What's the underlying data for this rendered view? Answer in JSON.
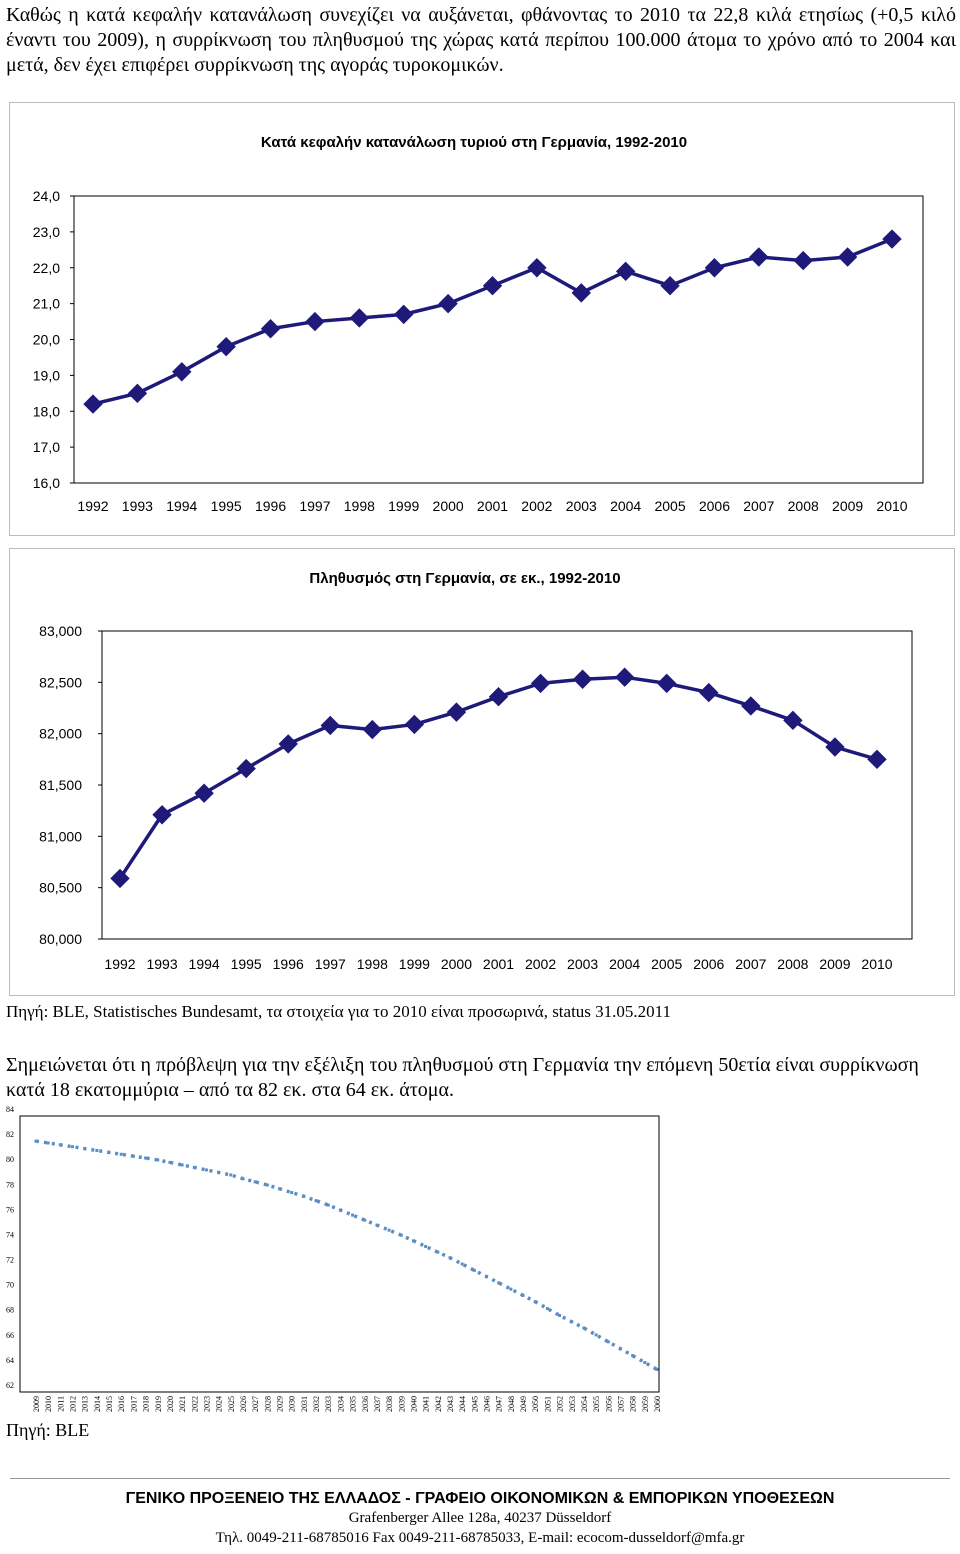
{
  "intro_text": "Καθώς η κατά κεφαλήν κατανάλωση συνεχίζει να αυξάνεται, φθάνοντας το 2010 τα 22,8 κιλά ετησίως (+0,5 κιλό έναντι του 2009), η συρρίκνωση του πληθυσμού της χώρας κατά περίπου 100.000 άτομα το χρόνο από το 2004 και μετά, δεν έχει επιφέρει συρρίκνωση της αγοράς τυροκομικών.",
  "source1": "Πηγή: BLE, Statistisches Bundesamt, τα στοιχεία για το 2010 είναι προσωρινά, status 31.05.2011",
  "intro2_text": "Σημειώνεται ότι η πρόβλεψη για την εξέλιξη του πληθυσμού στη Γερμανία την επόμενη 50ετία είναι συρρίκνωση κατά 18 εκατομμύρια – από τα 82 εκ. στα 64 εκ. άτομα.",
  "source2": "Πηγή: BLE",
  "footer": {
    "line1": "ΓΕΝΙΚΟ ΠΡΟΞΕΝΕΙΟ ΤΗΣ ΕΛΛΑΔΟΣ - ΓΡΑΦΕΙΟ ΟΙΚΟΝΟΜΙΚΩΝ & ΕΜΠΟΡΙΚΩΝ ΥΠΟΘΕΣΕΩΝ",
    "line2": "Grafenberger Allee 128a, 40237 Düsseldorf",
    "line3": "Τηλ. 0049-211-68785016 Fax 0049-211-68785033, E-mail: ecocom-dusseldorf@mfa.gr"
  },
  "colors": {
    "series": "#1f1a7a",
    "projection": "#5b8fc4",
    "axis": "#000000"
  },
  "chart_data": [
    {
      "type": "line",
      "title": "Κατά κεφαλήν κατανάλωση τυριού στη Γερμανία, 1992-2010",
      "x": [
        "1992",
        "1993",
        "1994",
        "1995",
        "1996",
        "1997",
        "1998",
        "1999",
        "2000",
        "2001",
        "2002",
        "2003",
        "2004",
        "2005",
        "2006",
        "2007",
        "2008",
        "2009",
        "2010"
      ],
      "values": [
        18.2,
        18.5,
        19.1,
        19.8,
        20.3,
        20.5,
        20.6,
        20.7,
        21.0,
        21.5,
        22.0,
        21.3,
        21.9,
        21.5,
        22.0,
        22.3,
        22.2,
        22.3,
        22.8
      ],
      "ylim": [
        16,
        24
      ],
      "yticks": [
        "16,0",
        "17,0",
        "18,0",
        "19,0",
        "20,0",
        "21,0",
        "22,0",
        "23,0",
        "24,0"
      ],
      "marker": "diamond",
      "grid": false
    },
    {
      "type": "line",
      "title": "Πληθυσμός στη Γερμανία, σε εκ., 1992-2010",
      "x": [
        "1992",
        "1993",
        "1994",
        "1995",
        "1996",
        "1997",
        "1998",
        "1999",
        "2000",
        "2001",
        "2002",
        "2003",
        "2004",
        "2005",
        "2006",
        "2007",
        "2008",
        "2009",
        "2010"
      ],
      "values": [
        80.59,
        81.21,
        81.42,
        81.66,
        81.9,
        82.08,
        82.04,
        82.09,
        82.21,
        82.36,
        82.49,
        82.53,
        82.55,
        82.49,
        82.4,
        82.27,
        82.13,
        81.87,
        81.75
      ],
      "ylim": [
        80,
        83
      ],
      "yticks": [
        "80,000",
        "80,500",
        "81,000",
        "81,500",
        "82,000",
        "82,500",
        "83,000"
      ],
      "marker": "diamond",
      "grid": false
    },
    {
      "type": "line",
      "title": "",
      "x": [
        "2009",
        "2010",
        "2011",
        "2012",
        "2013",
        "2014",
        "2015",
        "2016",
        "2017",
        "2018",
        "2019",
        "2020",
        "2021",
        "2022",
        "2023",
        "2024",
        "2025",
        "2026",
        "2027",
        "2028",
        "2029",
        "2030",
        "2031",
        "2032",
        "2033",
        "2034",
        "2035",
        "2036",
        "2037",
        "2038",
        "2039",
        "2040",
        "2041",
        "2042",
        "2043",
        "2044",
        "2045",
        "2046",
        "2047",
        "2048",
        "2049",
        "2050",
        "2051",
        "2052",
        "2053",
        "2054",
        "2055",
        "2056",
        "2057",
        "2058",
        "2059",
        "2060"
      ],
      "values": [
        82.0,
        81.85,
        81.7,
        81.55,
        81.4,
        81.25,
        81.1,
        80.95,
        80.8,
        80.65,
        80.5,
        80.3,
        80.1,
        79.9,
        79.7,
        79.5,
        79.3,
        79.0,
        78.75,
        78.5,
        78.2,
        77.9,
        77.6,
        77.25,
        76.9,
        76.5,
        76.1,
        75.7,
        75.3,
        74.9,
        74.5,
        74.05,
        73.6,
        73.15,
        72.7,
        72.2,
        71.7,
        71.2,
        70.7,
        70.2,
        69.7,
        69.2,
        68.65,
        68.1,
        67.6,
        67.1,
        66.55,
        66.0,
        65.45,
        64.9,
        64.35,
        63.8
      ],
      "ylim": [
        62,
        84
      ],
      "yticks": [
        "62",
        "64",
        "66",
        "68",
        "70",
        "72",
        "74",
        "76",
        "78",
        "80",
        "82",
        "84"
      ],
      "marker": "square",
      "line_style": "dotted",
      "grid": false
    }
  ]
}
